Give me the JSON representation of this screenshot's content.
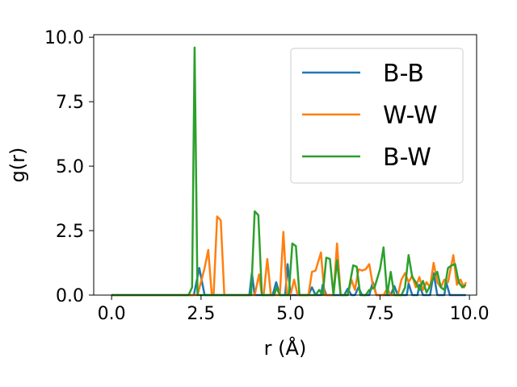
{
  "chart_data": {
    "type": "line",
    "title": "",
    "xlabel": "r (Å)",
    "ylabel": "g(r)",
    "xlim": [
      -0.5,
      10.2
    ],
    "ylim": [
      0.0,
      10.1
    ],
    "xticks": [
      0.0,
      2.5,
      5.0,
      7.5,
      10.0
    ],
    "xtick_labels": [
      "0.0",
      "2.5",
      "5.0",
      "7.5",
      "10.0"
    ],
    "yticks": [
      0.0,
      2.5,
      5.0,
      7.5,
      10.0
    ],
    "ytick_labels": [
      "0.0",
      "2.5",
      "5.0",
      "7.5",
      "10.0"
    ],
    "grid": false,
    "legend_position": "top-right",
    "series": [
      {
        "name": "B-B",
        "color": "#1f77b4",
        "points": [
          [
            0.0,
            0
          ],
          [
            2.3,
            0
          ],
          [
            2.45,
            1.05
          ],
          [
            2.6,
            0
          ],
          [
            3.85,
            0
          ],
          [
            3.92,
            0.85
          ],
          [
            4.0,
            0
          ],
          [
            4.5,
            0
          ],
          [
            4.6,
            0.5
          ],
          [
            4.7,
            0
          ],
          [
            4.85,
            0
          ],
          [
            4.92,
            1.2
          ],
          [
            5.0,
            0
          ],
          [
            5.5,
            0
          ],
          [
            5.6,
            0.3
          ],
          [
            5.7,
            0
          ],
          [
            5.85,
            0
          ],
          [
            5.9,
            0.4
          ],
          [
            6.0,
            0
          ],
          [
            6.5,
            0
          ],
          [
            6.6,
            0.25
          ],
          [
            6.7,
            0
          ],
          [
            6.8,
            0
          ],
          [
            6.9,
            0.3
          ],
          [
            7.0,
            0
          ],
          [
            7.2,
            0
          ],
          [
            7.3,
            0.5
          ],
          [
            7.4,
            0
          ],
          [
            7.8,
            0
          ],
          [
            7.9,
            0.35
          ],
          [
            8.0,
            0
          ],
          [
            8.25,
            0
          ],
          [
            8.3,
            0.45
          ],
          [
            8.4,
            0
          ],
          [
            8.55,
            0
          ],
          [
            8.6,
            0.4
          ],
          [
            8.7,
            0
          ],
          [
            8.9,
            0
          ],
          [
            9.0,
            0.85
          ],
          [
            9.1,
            0
          ],
          [
            9.3,
            0
          ],
          [
            9.35,
            0.5
          ],
          [
            9.45,
            0
          ],
          [
            9.9,
            0
          ]
        ]
      },
      {
        "name": "W-W",
        "color": "#ff7f0e",
        "points": [
          [
            0.0,
            0
          ],
          [
            2.4,
            0
          ],
          [
            2.6,
            1.05
          ],
          [
            2.7,
            1.75
          ],
          [
            2.8,
            0
          ],
          [
            2.85,
            0
          ],
          [
            2.95,
            3.05
          ],
          [
            3.05,
            2.9
          ],
          [
            3.15,
            0
          ],
          [
            4.0,
            0
          ],
          [
            4.12,
            0.8
          ],
          [
            4.2,
            0
          ],
          [
            4.25,
            0
          ],
          [
            4.35,
            1.4
          ],
          [
            4.45,
            0
          ],
          [
            4.7,
            0
          ],
          [
            4.8,
            2.45
          ],
          [
            4.9,
            0
          ],
          [
            5.0,
            0
          ],
          [
            5.1,
            0.6
          ],
          [
            5.2,
            0
          ],
          [
            5.5,
            0
          ],
          [
            5.6,
            0.9
          ],
          [
            5.7,
            0.95
          ],
          [
            5.85,
            1.65
          ],
          [
            5.95,
            0
          ],
          [
            6.2,
            0
          ],
          [
            6.3,
            2.0
          ],
          [
            6.4,
            0
          ],
          [
            6.6,
            0
          ],
          [
            6.7,
            0.6
          ],
          [
            6.8,
            0.2
          ],
          [
            6.9,
            1.0
          ],
          [
            7.0,
            0.95
          ],
          [
            7.1,
            1.0
          ],
          [
            7.2,
            1.2
          ],
          [
            7.3,
            0.4
          ],
          [
            7.4,
            0
          ],
          [
            7.6,
            0
          ],
          [
            7.7,
            0.25
          ],
          [
            7.8,
            0
          ],
          [
            8.0,
            0
          ],
          [
            8.1,
            0.6
          ],
          [
            8.2,
            0.85
          ],
          [
            8.3,
            0.5
          ],
          [
            8.4,
            0.75
          ],
          [
            8.5,
            0.3
          ],
          [
            8.6,
            0.7
          ],
          [
            8.7,
            0.2
          ],
          [
            8.8,
            0.5
          ],
          [
            8.9,
            0.3
          ],
          [
            9.0,
            1.25
          ],
          [
            9.1,
            0.5
          ],
          [
            9.2,
            0.3
          ],
          [
            9.3,
            0.6
          ],
          [
            9.4,
            0.5
          ],
          [
            9.55,
            1.55
          ],
          [
            9.65,
            0.4
          ],
          [
            9.75,
            0.6
          ],
          [
            9.85,
            0.3
          ],
          [
            9.9,
            0.5
          ]
        ]
      },
      {
        "name": "B-W",
        "color": "#2ca02c",
        "points": [
          [
            0.0,
            0
          ],
          [
            2.15,
            0
          ],
          [
            2.25,
            0.3
          ],
          [
            2.32,
            9.6
          ],
          [
            2.4,
            0
          ],
          [
            3.9,
            0
          ],
          [
            4.0,
            3.25
          ],
          [
            4.1,
            3.1
          ],
          [
            4.2,
            0
          ],
          [
            4.55,
            0
          ],
          [
            4.6,
            0.3
          ],
          [
            4.7,
            0
          ],
          [
            4.95,
            0
          ],
          [
            5.05,
            2.0
          ],
          [
            5.15,
            1.9
          ],
          [
            5.25,
            0
          ],
          [
            5.7,
            0
          ],
          [
            5.8,
            0.2
          ],
          [
            5.9,
            0
          ],
          [
            6.0,
            1.45
          ],
          [
            6.1,
            1.4
          ],
          [
            6.2,
            0
          ],
          [
            6.3,
            1.35
          ],
          [
            6.4,
            0
          ],
          [
            6.6,
            0
          ],
          [
            6.75,
            1.15
          ],
          [
            6.85,
            1.1
          ],
          [
            6.95,
            0
          ],
          [
            7.1,
            0
          ],
          [
            7.2,
            0.2
          ],
          [
            7.35,
            0.3
          ],
          [
            7.5,
            1.0
          ],
          [
            7.6,
            1.85
          ],
          [
            7.7,
            0
          ],
          [
            7.8,
            0.9
          ],
          [
            7.9,
            0
          ],
          [
            8.1,
            0
          ],
          [
            8.2,
            0.3
          ],
          [
            8.3,
            1.55
          ],
          [
            8.4,
            0.7
          ],
          [
            8.5,
            0.5
          ],
          [
            8.6,
            0.2
          ],
          [
            8.7,
            0.55
          ],
          [
            8.8,
            0.1
          ],
          [
            8.9,
            0.35
          ],
          [
            9.0,
            0.7
          ],
          [
            9.1,
            0.9
          ],
          [
            9.2,
            0.3
          ],
          [
            9.3,
            0.2
          ],
          [
            9.4,
            1.05
          ],
          [
            9.5,
            1.15
          ],
          [
            9.6,
            1.2
          ],
          [
            9.7,
            0.5
          ],
          [
            9.8,
            0.3
          ],
          [
            9.9,
            0.4
          ]
        ]
      }
    ]
  }
}
